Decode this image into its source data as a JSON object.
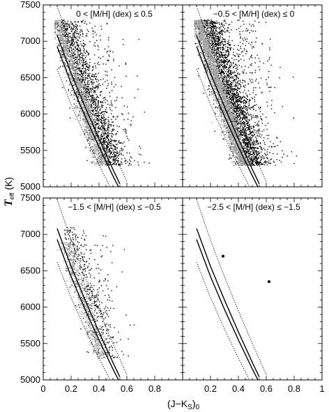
{
  "chart_data": {
    "type": "scatter",
    "xlabel_main": "(J−K",
    "xlabel_sub": "S",
    "xlabel_tail": ")",
    "xlabel_sub2": "0",
    "ylabel_main": "T",
    "ylabel_sub": "eff",
    "ylabel_unit": " (K)",
    "xlim": [
      0.0,
      1.0
    ],
    "ylim": [
      5000,
      7500
    ],
    "x_ticks_left": [
      "0",
      "0.2",
      "0.4",
      "0.6",
      "0.8"
    ],
    "x_ticks_right": [
      "0.2",
      "0.4",
      "0.6",
      "0.8",
      "1"
    ],
    "x_tick_values_left": [
      0,
      0.2,
      0.4,
      0.6,
      0.8
    ],
    "x_tick_values_right": [
      0.2,
      0.4,
      0.6,
      0.8,
      1.0
    ],
    "y_ticks": [
      "5000",
      "5500",
      "6000",
      "6500",
      "7000",
      "7500"
    ],
    "y_tick_values": [
      5000,
      5500,
      6000,
      6500,
      7000,
      7500
    ],
    "colors": {
      "black_points": "#000000",
      "gray_points": "#a8a8a8",
      "curves": "#000000"
    },
    "panels": [
      {
        "label": "0 < [M/H] (dex) ≤ 0.5",
        "black_density": "high",
        "black_clouds": [
          {
            "x_center_at_ymid": 0.32,
            "slope_dx_per_K": -0.00018,
            "spread": 0.075,
            "y_range": [
              5300,
              7300
            ],
            "count": 1600
          },
          {
            "x_center_at_ymid": 0.45,
            "slope_dx_per_K": -0.0001,
            "spread": 0.12,
            "y_range": [
              5300,
              7300
            ],
            "count": 220
          }
        ],
        "gray_clouds": [
          {
            "x_center_at_ymid": 0.26,
            "slope_dx_per_K": -0.00016,
            "spread": 0.035,
            "y_range": [
              5300,
              7300
            ],
            "count": 1400
          }
        ],
        "points": []
      },
      {
        "label": "−0.5 < [M/H] (dex) ≤ 0",
        "black_density": "very high",
        "black_clouds": [
          {
            "x_center_at_ymid": 0.34,
            "slope_dx_per_K": -0.00017,
            "spread": 0.075,
            "y_range": [
              5300,
              7300
            ],
            "count": 2600
          },
          {
            "x_center_at_ymid": 0.48,
            "slope_dx_per_K": -0.0001,
            "spread": 0.13,
            "y_range": [
              5300,
              7300
            ],
            "count": 300
          }
        ],
        "gray_clouds": [
          {
            "x_center_at_ymid": 0.27,
            "slope_dx_per_K": -0.00016,
            "spread": 0.035,
            "y_range": [
              5300,
              7300
            ],
            "count": 2600
          }
        ],
        "points": []
      },
      {
        "label": "−1.5 < [M/H] (dex) ≤ −0.5",
        "black_density": "low",
        "black_clouds": [
          {
            "x_center_at_ymid": 0.33,
            "slope_dx_per_K": -0.00016,
            "spread": 0.07,
            "y_range": [
              5300,
              7100
            ],
            "count": 420
          },
          {
            "x_center_at_ymid": 0.45,
            "slope_dx_per_K": -0.0001,
            "spread": 0.1,
            "y_range": [
              5600,
              7000
            ],
            "count": 50
          }
        ],
        "gray_clouds": [
          {
            "x_center_at_ymid": 0.29,
            "slope_dx_per_K": -0.00016,
            "spread": 0.035,
            "y_range": [
              5300,
              6900
            ],
            "count": 700
          }
        ],
        "points": []
      },
      {
        "label": "−2.5 < [M/H] (dex) ≤ −1.5",
        "black_density": "none",
        "black_clouds": [],
        "gray_clouds": [],
        "points": [
          {
            "x": 0.29,
            "y": 6700
          },
          {
            "x": 0.62,
            "y": 6350
          }
        ]
      }
    ],
    "relations": {
      "solid_a": [
        [
          0.1,
          7080
        ],
        [
          0.2,
          6560
        ],
        [
          0.3,
          6100
        ],
        [
          0.4,
          5660
        ],
        [
          0.5,
          5240
        ],
        [
          0.55,
          5040
        ]
      ],
      "solid_b": [
        [
          0.1,
          6930
        ],
        [
          0.2,
          6420
        ],
        [
          0.3,
          5970
        ],
        [
          0.4,
          5550
        ],
        [
          0.5,
          5150
        ],
        [
          0.54,
          5000
        ]
      ],
      "dotted_high": [
        [
          0.1,
          7480
        ],
        [
          0.2,
          6920
        ],
        [
          0.3,
          6420
        ],
        [
          0.4,
          5950
        ],
        [
          0.5,
          5500
        ],
        [
          0.6,
          5070
        ]
      ],
      "dotted_low": [
        [
          0.1,
          6620
        ],
        [
          0.2,
          6130
        ],
        [
          0.3,
          5700
        ],
        [
          0.4,
          5300
        ],
        [
          0.48,
          5000
        ]
      ]
    }
  }
}
